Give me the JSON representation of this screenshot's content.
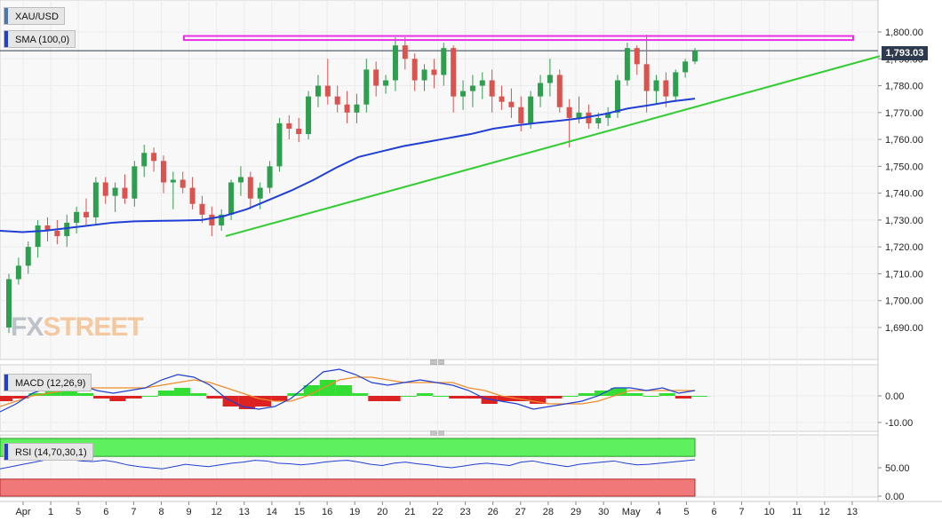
{
  "symbol": "XAU/USD",
  "current_price_label": "1,793.03",
  "brand": {
    "part1": "FX",
    "part2": "STREET"
  },
  "legends": {
    "symbol": "XAU/USD",
    "sma": "SMA (100,0)",
    "macd": "MACD (12,26,9)",
    "rsi": "RSI (14,70,30,1)"
  },
  "colors": {
    "up": "#2e9e4f",
    "down": "#d9534f",
    "sma": "#1f3fd6",
    "trendline": "#33cc33",
    "resistance": "#e830e8",
    "macd_line": "#1f3fd6",
    "signal_line": "#f08c2a",
    "hist_pos": "#33dd33",
    "hist_neg": "#dd2222",
    "rsi_line": "#1f3fd6",
    "overbought_zone": "#5ef05e",
    "oversold_zone": "#f07878",
    "price_tag": "#2e3b4e"
  },
  "chart_data": [
    {
      "type": "candlestick",
      "title": "XAU/USD",
      "y_ticks": [
        "1,690.00",
        "1,700.00",
        "1,710.00",
        "1,720.00",
        "1,730.00",
        "1,740.00",
        "1,750.00",
        "1,760.00",
        "1,770.00",
        "1,780.00",
        "1,790.00",
        "1,800.00"
      ],
      "ylim": [
        1688,
        1806
      ],
      "x_tick_labels": [
        "Apr",
        "1",
        "5",
        "6",
        "7",
        "8",
        "9",
        "12",
        "13",
        "14",
        "15",
        "16",
        "19",
        "20",
        "21",
        "22",
        "23",
        "26",
        "27",
        "28",
        "29",
        "30",
        "May",
        "4",
        "5",
        "6",
        "7",
        "10",
        "11",
        "12",
        "13"
      ],
      "candles_ohlc_chronological": [
        [
          1690,
          1710,
          1688,
          1708
        ],
        [
          1708,
          1716,
          1706,
          1713
        ],
        [
          1713,
          1722,
          1710,
          1720
        ],
        [
          1720,
          1730,
          1716,
          1728
        ],
        [
          1728,
          1731,
          1722,
          1726
        ],
        [
          1726,
          1730,
          1721,
          1724
        ],
        [
          1724,
          1732,
          1720,
          1729
        ],
        [
          1729,
          1735,
          1725,
          1733
        ],
        [
          1733,
          1738,
          1728,
          1731
        ],
        [
          1731,
          1746,
          1728,
          1744
        ],
        [
          1744,
          1746,
          1736,
          1739
        ],
        [
          1739,
          1744,
          1733,
          1742
        ],
        [
          1742,
          1747,
          1736,
          1738
        ],
        [
          1738,
          1752,
          1735,
          1750
        ],
        [
          1750,
          1758,
          1746,
          1755
        ],
        [
          1755,
          1757,
          1748,
          1752
        ],
        [
          1752,
          1754,
          1740,
          1744
        ],
        [
          1744,
          1748,
          1734,
          1745
        ],
        [
          1745,
          1748,
          1740,
          1742
        ],
        [
          1742,
          1746,
          1734,
          1736
        ],
        [
          1736,
          1739,
          1729,
          1732
        ],
        [
          1732,
          1735,
          1724,
          1728
        ],
        [
          1728,
          1734,
          1726,
          1732
        ],
        [
          1732,
          1745,
          1730,
          1744
        ],
        [
          1744,
          1750,
          1739,
          1746
        ],
        [
          1746,
          1748,
          1734,
          1738
        ],
        [
          1738,
          1744,
          1734,
          1742
        ],
        [
          1742,
          1752,
          1740,
          1750
        ],
        [
          1750,
          1768,
          1748,
          1766
        ],
        [
          1766,
          1769,
          1760,
          1764
        ],
        [
          1764,
          1768,
          1759,
          1762
        ],
        [
          1762,
          1778,
          1760,
          1776
        ],
        [
          1776,
          1784,
          1772,
          1780
        ],
        [
          1780,
          1790,
          1773,
          1776
        ],
        [
          1776,
          1780,
          1770,
          1773
        ],
        [
          1773,
          1778,
          1766,
          1770
        ],
        [
          1770,
          1777,
          1766,
          1773
        ],
        [
          1773,
          1790,
          1770,
          1786
        ],
        [
          1786,
          1789,
          1776,
          1780
        ],
        [
          1780,
          1784,
          1777,
          1782
        ],
        [
          1782,
          1798,
          1778,
          1795
        ],
        [
          1795,
          1798,
          1786,
          1790
        ],
        [
          1790,
          1792,
          1778,
          1782
        ],
        [
          1782,
          1788,
          1778,
          1786
        ],
        [
          1786,
          1790,
          1779,
          1784
        ],
        [
          1784,
          1796,
          1780,
          1794
        ],
        [
          1794,
          1795,
          1770,
          1776
        ],
        [
          1776,
          1782,
          1771,
          1778
        ],
        [
          1778,
          1784,
          1772,
          1780
        ],
        [
          1780,
          1785,
          1775,
          1782
        ],
        [
          1782,
          1786,
          1770,
          1776
        ],
        [
          1776,
          1780,
          1771,
          1774
        ],
        [
          1774,
          1779,
          1768,
          1772
        ],
        [
          1772,
          1776,
          1763,
          1766
        ],
        [
          1766,
          1778,
          1764,
          1776
        ],
        [
          1776,
          1784,
          1772,
          1781
        ],
        [
          1781,
          1790,
          1776,
          1784
        ],
        [
          1784,
          1786,
          1770,
          1772
        ],
        [
          1772,
          1775,
          1757,
          1768
        ],
        [
          1768,
          1776,
          1766,
          1770
        ],
        [
          1770,
          1773,
          1764,
          1766
        ],
        [
          1766,
          1770,
          1764,
          1768
        ],
        [
          1768,
          1772,
          1765,
          1770
        ],
        [
          1770,
          1784,
          1768,
          1782
        ],
        [
          1782,
          1796,
          1780,
          1794
        ],
        [
          1794,
          1795,
          1784,
          1788
        ],
        [
          1788,
          1799,
          1770,
          1778
        ],
        [
          1778,
          1784,
          1773,
          1782
        ],
        [
          1782,
          1785,
          1772,
          1776
        ],
        [
          1776,
          1786,
          1774,
          1785
        ],
        [
          1785,
          1790,
          1783,
          1789
        ],
        [
          1789,
          1794,
          1788,
          1793.03
        ]
      ],
      "sma_100": [
        1726,
        1725.5,
        1726,
        1727,
        1728,
        1729,
        1729.5,
        1729.7,
        1729.8,
        1730,
        1731.5,
        1734,
        1737.5,
        1741,
        1745,
        1749.5,
        1753.5,
        1755.5,
        1757.5,
        1759,
        1760.5,
        1762,
        1764,
        1765.2,
        1766.2,
        1767,
        1768,
        1769.5,
        1771.5,
        1772.8,
        1774.2,
        1775.2
      ],
      "trendline": {
        "start": [
          1724,
          "13"
        ],
        "end": [
          1791,
          "13 May"
        ]
      },
      "resistance_zone": [
        1797,
        1798.5
      ]
    },
    {
      "type": "line",
      "title": "MACD (12,26,9)",
      "y_ticks": [
        "0.00",
        "-10.00"
      ],
      "ylim": [
        -16,
        12
      ],
      "series": [
        {
          "name": "MACD",
          "values": [
            -6,
            -3,
            1,
            3,
            4,
            4,
            2,
            1,
            2,
            3,
            6,
            8,
            7,
            4,
            -1,
            -4,
            -5,
            -4,
            -1,
            4,
            9,
            10,
            8,
            5,
            4,
            5,
            6,
            5,
            4,
            2,
            -1,
            -2,
            -3,
            -5,
            -4,
            -3,
            -2,
            0,
            3,
            3,
            2,
            3,
            1,
            2
          ]
        },
        {
          "name": "Signal",
          "values": [
            -4,
            -2,
            0,
            1,
            2,
            3,
            3,
            3,
            3,
            3,
            4,
            5,
            6,
            5,
            3,
            1,
            -1,
            -2,
            -2,
            0,
            3,
            6,
            7,
            7,
            6,
            5,
            5,
            5,
            5,
            3,
            2,
            0,
            -1,
            -2,
            -3,
            -3,
            -3,
            -2,
            0,
            2,
            2,
            2,
            2,
            2
          ]
        },
        {
          "name": "Histogram",
          "values": [
            -2,
            -1,
            1,
            2,
            2,
            1,
            -1,
            -2,
            -1,
            0,
            2,
            3,
            1,
            -1,
            -4,
            -5,
            -4,
            -2,
            1,
            4,
            6,
            4,
            1,
            -2,
            -2,
            0,
            1,
            0,
            -1,
            -1,
            -3,
            -2,
            -2,
            -3,
            -1,
            0,
            1,
            2,
            3,
            1,
            0,
            1,
            -1,
            0
          ]
        }
      ]
    },
    {
      "type": "line",
      "title": "RSI (14,70,30,1)",
      "y_ticks": [
        "0.00",
        "50.00"
      ],
      "ylim": [
        0,
        100
      ],
      "overbought": 70,
      "oversold": 30,
      "series": [
        {
          "name": "RSI",
          "values": [
            48,
            52,
            56,
            60,
            64,
            66,
            65,
            62,
            61,
            63,
            60,
            55,
            52,
            50,
            48,
            52,
            56,
            54,
            52,
            55,
            58,
            60,
            63,
            62,
            58,
            57,
            55,
            57,
            60,
            62,
            63,
            60,
            56,
            54,
            58,
            60,
            57,
            55,
            52,
            50,
            53,
            56,
            58,
            56,
            54,
            60,
            62,
            58,
            55,
            52,
            56,
            58,
            60,
            62,
            58,
            55,
            56,
            58,
            60,
            62,
            64
          ]
        }
      ]
    }
  ]
}
